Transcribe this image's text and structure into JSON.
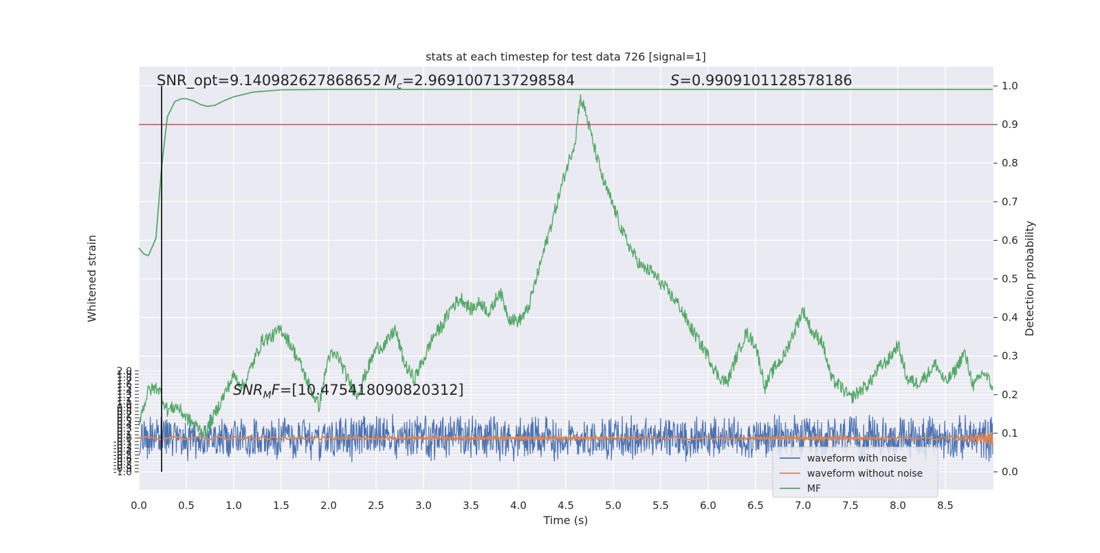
{
  "chart_data": {
    "type": "line",
    "title": "stats at each timestep for test data 726 [signal=1]",
    "xlabel": "Time (s)",
    "xlim": [
      0.0,
      9.0
    ],
    "xticks": [
      "0.0",
      "0.5",
      "1.0",
      "1.5",
      "2.0",
      "2.5",
      "3.0",
      "3.5",
      "4.0",
      "4.5",
      "5.0",
      "5.5",
      "6.0",
      "6.5",
      "7.0",
      "7.5",
      "8.0",
      "8.5"
    ],
    "left_axis": {
      "label": "Whitened strain",
      "ylim": [
        -1.0,
        2.0
      ],
      "ticks": [
        "2.0",
        "1.9",
        "1.8",
        "1.7",
        "1.6",
        "1.5",
        "1.4",
        "1.3",
        "1.2",
        "1.1",
        "1.0",
        "0.9",
        "0.8",
        "0.7",
        "0.6",
        "0.5",
        "0.4",
        "0.3",
        "0.2",
        "0.1",
        "0.0",
        "-0.1",
        "-0.2",
        "-0.3",
        "-0.4",
        "-0.5",
        "-0.6",
        "-0.7",
        "-0.8",
        "-0.9",
        "-1.0"
      ]
    },
    "right_axis": {
      "label": "Detection probability",
      "ylim": [
        -0.05,
        1.05
      ],
      "ticks": [
        "1.0",
        "0.9",
        "0.8",
        "0.7",
        "0.6",
        "0.5",
        "0.4",
        "0.3",
        "0.2",
        "0.1",
        "0.0"
      ]
    },
    "threshold": 0.9,
    "marker_time": 0.24,
    "annotations": {
      "snr_opt": "SNR_opt=9.140982627868652",
      "mc": "=2.9691007137298584",
      "s_value": "=0.9909101128578186",
      "snr_mf": "=[10.475418090820312]"
    },
    "series": [
      {
        "name": "waveform with noise",
        "color": "#4c72b0",
        "axis": "left",
        "amplitude_range": [
          -0.75,
          0.75
        ]
      },
      {
        "name": "waveform without noise",
        "color": "#dd8452",
        "axis": "left",
        "amplitude_range": [
          -0.25,
          0.28
        ]
      },
      {
        "name": "MF",
        "color": "#55a868",
        "axis": "right",
        "x": [
          0.0,
          0.05,
          0.1,
          0.18,
          0.24,
          0.3,
          0.38,
          0.45,
          0.5,
          0.58,
          0.65,
          0.72,
          0.8,
          0.9,
          1.0,
          1.2,
          1.5,
          2.0,
          3.0,
          9.0
        ],
        "values": [
          0.58,
          0.565,
          0.56,
          0.605,
          0.79,
          0.92,
          0.96,
          0.967,
          0.967,
          0.961,
          0.952,
          0.947,
          0.95,
          0.962,
          0.972,
          0.984,
          0.99,
          0.991,
          0.991,
          0.991
        ]
      },
      {
        "name": "Detection probability",
        "color": "#55a868",
        "axis": "right",
        "x": [
          0.0,
          0.1,
          0.2,
          0.3,
          0.4,
          0.5,
          0.6,
          0.7,
          0.8,
          0.9,
          1.0,
          1.1,
          1.2,
          1.3,
          1.4,
          1.5,
          1.6,
          1.7,
          1.8,
          1.9,
          2.0,
          2.1,
          2.2,
          2.3,
          2.4,
          2.5,
          2.6,
          2.7,
          2.8,
          2.9,
          3.0,
          3.1,
          3.2,
          3.3,
          3.4,
          3.5,
          3.6,
          3.7,
          3.8,
          3.9,
          4.0,
          4.1,
          4.2,
          4.3,
          4.4,
          4.5,
          4.6,
          4.65,
          4.7,
          4.8,
          4.9,
          5.0,
          5.1,
          5.2,
          5.3,
          5.4,
          5.5,
          5.6,
          5.7,
          5.8,
          5.9,
          6.0,
          6.1,
          6.2,
          6.3,
          6.4,
          6.5,
          6.6,
          6.7,
          6.8,
          6.9,
          7.0,
          7.1,
          7.2,
          7.3,
          7.4,
          7.5,
          7.6,
          7.7,
          7.8,
          7.9,
          8.0,
          8.1,
          8.2,
          8.3,
          8.4,
          8.5,
          8.6,
          8.7,
          8.8,
          8.9,
          9.0
        ],
        "values": [
          0.13,
          0.21,
          0.22,
          0.16,
          0.17,
          0.14,
          0.12,
          0.1,
          0.15,
          0.2,
          0.25,
          0.22,
          0.28,
          0.34,
          0.35,
          0.37,
          0.33,
          0.28,
          0.22,
          0.17,
          0.3,
          0.3,
          0.24,
          0.2,
          0.26,
          0.32,
          0.33,
          0.37,
          0.28,
          0.24,
          0.29,
          0.35,
          0.38,
          0.43,
          0.45,
          0.42,
          0.44,
          0.41,
          0.47,
          0.4,
          0.39,
          0.42,
          0.51,
          0.6,
          0.69,
          0.78,
          0.86,
          0.97,
          0.94,
          0.84,
          0.75,
          0.69,
          0.62,
          0.57,
          0.53,
          0.52,
          0.49,
          0.46,
          0.43,
          0.38,
          0.34,
          0.3,
          0.25,
          0.23,
          0.3,
          0.36,
          0.33,
          0.22,
          0.27,
          0.3,
          0.36,
          0.42,
          0.36,
          0.34,
          0.24,
          0.22,
          0.19,
          0.21,
          0.23,
          0.27,
          0.29,
          0.33,
          0.24,
          0.23,
          0.25,
          0.28,
          0.23,
          0.26,
          0.31,
          0.22,
          0.26,
          0.22
        ]
      }
    ],
    "legend": {
      "placement": "lower-right",
      "entries": [
        "waveform with noise",
        "waveform without noise",
        "MF"
      ]
    },
    "grid": true
  }
}
